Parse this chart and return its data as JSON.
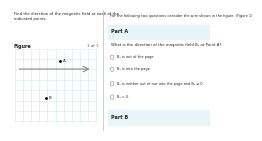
{
  "title_left": "Find the direction of the magnetic field at each of the\nindicated points.",
  "figure_label": "Figure",
  "figure_number": "1 of 1",
  "point_A_label": "A",
  "point_B_label": "B",
  "right_text_title": "For the following two questions consider the wire shown in the figure. (Figure 1)",
  "part_a_label": "Part A",
  "part_a_question": "What is the direction of the magnetic field Bₐ at Point A?",
  "options": [
    "Bₐ is out of the page.",
    "Bₐ is into the page.",
    "Bₐ is neither out of nor into the page and Bₐ ≠ 0.",
    "Bₐ = 0."
  ],
  "part_b_label": "Part B",
  "bg_color": "#ffffff",
  "grid_color": "#d0e8f0",
  "wire_color": "#888888",
  "text_color": "#222222",
  "light_text": "#555555",
  "divider_color": "#bbbbbb",
  "panel_bg": "#e8f4f8"
}
